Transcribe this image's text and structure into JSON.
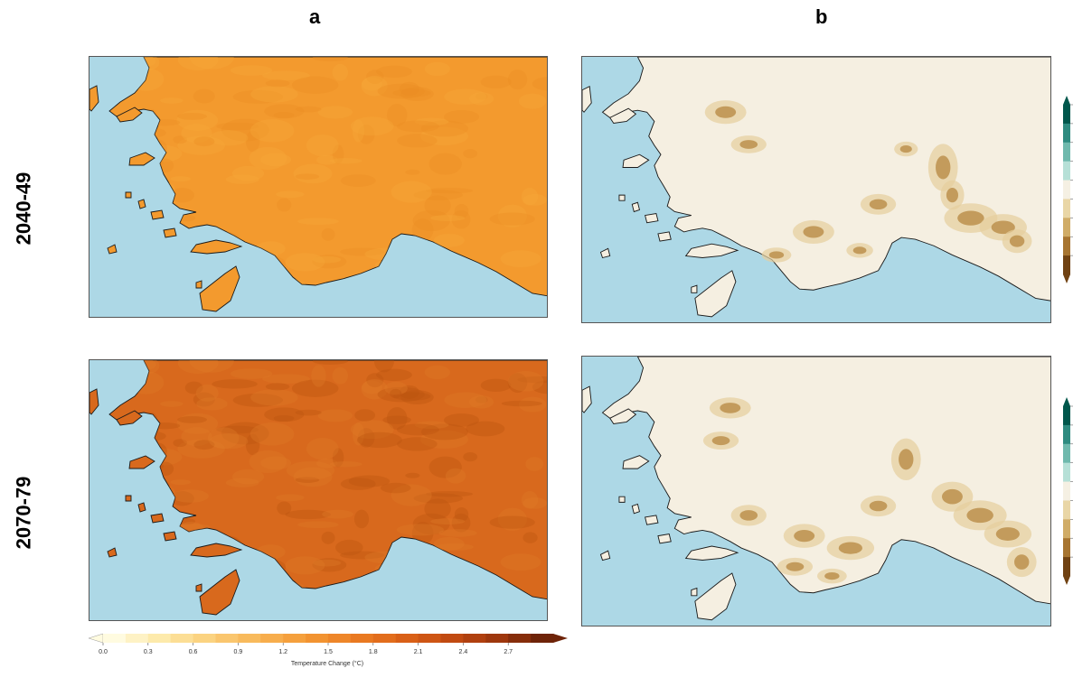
{
  "columns": [
    {
      "id": "a",
      "label": "a"
    },
    {
      "id": "b",
      "label": "b"
    }
  ],
  "rows": [
    {
      "id": "r1",
      "label": "2040-49"
    },
    {
      "id": "r2",
      "label": "2070-79"
    }
  ],
  "colors": {
    "sea": "#add8e6",
    "land_a_2040": "#f39a2e",
    "land_a_2070": "#d8691d",
    "land_b": "#f5efe1",
    "coast": "#1a1a1a"
  },
  "colorbar_horizontal": {
    "ticks": [
      "0.0",
      "0.3",
      "0.6",
      "0.9",
      "1.2",
      "1.5",
      "1.8",
      "2.1",
      "2.4",
      "2.7"
    ],
    "title": "Temperature Change (°C)",
    "stops": [
      "#fffbe0",
      "#fde9a8",
      "#fbd07c",
      "#f8b656",
      "#f49a36",
      "#ec7f24",
      "#dd6418",
      "#c54c12",
      "#a1380d",
      "#6e2308"
    ]
  },
  "colorbar_vertical": {
    "stops": [
      "#00574c",
      "#2e8b80",
      "#6fb9ad",
      "#b6e0d7",
      "#f5f0e3",
      "#e9d6a6",
      "#d0ac67",
      "#a77531",
      "#704212"
    ]
  }
}
